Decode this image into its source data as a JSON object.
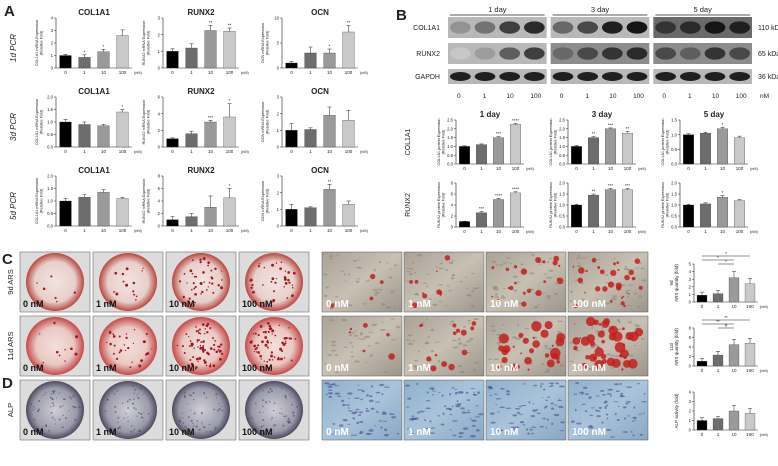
{
  "panels": {
    "A": "A",
    "B": "B",
    "C": "C",
    "D": "D"
  },
  "conc_ticks": [
    "0",
    "1",
    "10",
    "100"
  ],
  "unit_nm": "(nM)",
  "pcr_rows": [
    {
      "label": "1d PCR",
      "charts": [
        {
          "title": "COL1A1",
          "ylabel": "COL1A1 mRNA Expression (Relative Fold)",
          "ylim": [
            0,
            4
          ],
          "yticks": [
            "0",
            "1",
            "2",
            "3",
            "4"
          ],
          "values": [
            1.0,
            0.85,
            1.3,
            2.6
          ],
          "errors": [
            0.1,
            0.2,
            0.2,
            0.45
          ],
          "sig": [
            "",
            "*",
            "*",
            ""
          ]
        },
        {
          "title": "RUNX2",
          "ylabel": "RUNX2 mRNA Expression (Relative Fold)",
          "ylim": [
            0,
            3
          ],
          "yticks": [
            "0",
            "1",
            "2",
            "3"
          ],
          "values": [
            1.0,
            1.2,
            2.25,
            2.2
          ],
          "errors": [
            0.15,
            0.25,
            0.3,
            0.2
          ],
          "sig": [
            "",
            "",
            "**",
            "**"
          ]
        },
        {
          "title": "OCN",
          "ylabel": "OCN mRNA Expression (Relative Fold)",
          "ylim": [
            0,
            10
          ],
          "yticks": [
            "0",
            "5",
            "10"
          ],
          "values": [
            1.0,
            3.0,
            3.0,
            7.2
          ],
          "errors": [
            0.3,
            1.2,
            0.8,
            1.3
          ],
          "sig": [
            "",
            "",
            "*",
            "**"
          ]
        }
      ]
    },
    {
      "label": "3d PCR",
      "charts": [
        {
          "title": "COL1A1",
          "ylabel": "COL1A1 mRNA Expression (Relative Fold)",
          "ylim": [
            0,
            2
          ],
          "yticks": [
            "0.0",
            "0.5",
            "1.0",
            "1.5",
            "2.0"
          ],
          "values": [
            1.0,
            0.9,
            0.85,
            1.4
          ],
          "errors": [
            0.1,
            0.1,
            0.05,
            0.1
          ],
          "sig": [
            "",
            "",
            "",
            "*"
          ]
        },
        {
          "title": "RUNX2",
          "ylabel": "RUNX2 mRNA Expression (Relative Fold)",
          "ylim": [
            0,
            6
          ],
          "yticks": [
            "0",
            "2",
            "4",
            "6"
          ],
          "values": [
            1.0,
            1.6,
            3.0,
            3.6
          ],
          "errors": [
            0.1,
            0.3,
            0.2,
            1.6
          ],
          "sig": [
            "",
            "",
            "***",
            "*"
          ]
        },
        {
          "title": "OCN",
          "ylabel": "OCN mRNA Expression (Relative Fold)",
          "ylim": [
            0,
            3
          ],
          "yticks": [
            "0",
            "1",
            "2",
            "3"
          ],
          "values": [
            1.0,
            1.05,
            1.9,
            1.6
          ],
          "errors": [
            0.4,
            0.1,
            0.5,
            0.6
          ],
          "sig": [
            "",
            "",
            "",
            ""
          ]
        }
      ]
    },
    {
      "label": "5d PCR",
      "charts": [
        {
          "title": "COL1A1",
          "ylabel": "COL1A1 mRNA Expression (Relative Fold)",
          "ylim": [
            0,
            2
          ],
          "yticks": [
            "0.0",
            "0.5",
            "1.0",
            "1.5",
            "2.0"
          ],
          "values": [
            1.0,
            1.15,
            1.35,
            1.1
          ],
          "errors": [
            0.1,
            0.1,
            0.1,
            0.05
          ],
          "sig": [
            "",
            "",
            "",
            ""
          ]
        },
        {
          "title": "RUNX2",
          "ylabel": "RUNX2 mRNA Expression (Relative Fold)",
          "ylim": [
            0,
            8
          ],
          "yticks": [
            "0",
            "2",
            "4",
            "6",
            "8"
          ],
          "values": [
            1.0,
            1.5,
            3.0,
            4.5
          ],
          "errors": [
            0.5,
            0.5,
            1.8,
            1.5
          ],
          "sig": [
            "",
            "",
            "",
            "*"
          ]
        },
        {
          "title": "OCN",
          "ylabel": "OCN mRNA Expression (Relative Fold)",
          "ylim": [
            0,
            3
          ],
          "yticks": [
            "0",
            "1",
            "2",
            "3"
          ],
          "values": [
            1.0,
            1.1,
            2.2,
            1.3
          ],
          "errors": [
            0.3,
            0.05,
            0.3,
            0.2
          ],
          "sig": [
            "",
            "",
            "**",
            ""
          ]
        }
      ]
    }
  ],
  "blot": {
    "days": [
      "1 day",
      "3 day",
      "5 day"
    ],
    "proteins": [
      "COL1A1",
      "RUNX2",
      "GAPDH"
    ],
    "kda": [
      "110 kDa",
      "65 kDa",
      "36 kDa"
    ],
    "conc": [
      "0",
      "1",
      "10",
      "100",
      "0",
      "1",
      "10",
      "100",
      "0",
      "1",
      "10",
      "100"
    ],
    "nm": "nM"
  },
  "protein_rows": [
    {
      "label": "COL1A1",
      "charts": [
        {
          "title": "1 day",
          "ylabel": "COL1A1 protein Expression (Relative Fold)",
          "ylim": [
            0,
            2.5
          ],
          "yticks": [
            "0.0",
            "0.5",
            "1.0",
            "1.5",
            "2.0",
            "2.5"
          ],
          "values": [
            1.0,
            1.1,
            1.5,
            2.25
          ],
          "errors": [
            0.03,
            0.04,
            0.05,
            0.05
          ],
          "sig": [
            "",
            "",
            "***",
            "****"
          ]
        },
        {
          "title": "3 day",
          "ylabel": "COL1A1 protein Expression (Relative Fold)",
          "ylim": [
            0,
            2.5
          ],
          "yticks": [
            "0.0",
            "0.5",
            "1.0",
            "1.5",
            "2.0",
            "2.5"
          ],
          "values": [
            1.0,
            1.5,
            2.0,
            1.75
          ],
          "errors": [
            0.05,
            0.05,
            0.05,
            0.1
          ],
          "sig": [
            "",
            "**",
            "***",
            "**"
          ]
        },
        {
          "title": "5 day",
          "ylabel": "COL1A1 protein Expression (Relative Fold)",
          "ylim": [
            0,
            1.5
          ],
          "yticks": [
            "0.0",
            "0.5",
            "1.0",
            "1.5"
          ],
          "values": [
            1.0,
            1.05,
            1.2,
            0.9
          ],
          "errors": [
            0.03,
            0.03,
            0.05,
            0.05
          ],
          "sig": [
            "",
            "",
            "*",
            ""
          ]
        }
      ]
    },
    {
      "label": "RUNX2",
      "charts": [
        {
          "title": "",
          "ylabel": "RUNX2 protein Expression (Relative Fold)",
          "ylim": [
            0,
            8
          ],
          "yticks": [
            "0",
            "2",
            "4",
            "6",
            "8"
          ],
          "values": [
            1.0,
            2.6,
            5.0,
            6.2
          ],
          "errors": [
            0.05,
            0.2,
            0.2,
            0.2
          ],
          "sig": [
            "",
            "***",
            "****",
            "****"
          ]
        },
        {
          "title": "",
          "ylabel": "RUNX2 protein Expression (Relative Fold)",
          "ylim": [
            0,
            2
          ],
          "yticks": [
            "0.0",
            "0.5",
            "1.0",
            "1.5",
            "2.0"
          ],
          "values": [
            1.0,
            1.45,
            1.7,
            1.7
          ],
          "errors": [
            0.03,
            0.05,
            0.05,
            0.05
          ],
          "sig": [
            "",
            "**",
            "***",
            "***"
          ]
        },
        {
          "title": "",
          "ylabel": "RUNX2 protein Expression (Relative Fold)",
          "ylim": [
            0,
            2
          ],
          "yticks": [
            "0.0",
            "0.5",
            "1.0",
            "1.5",
            "2.0"
          ],
          "values": [
            1.0,
            1.05,
            1.35,
            1.2
          ],
          "errors": [
            0.03,
            0.05,
            0.08,
            0.05
          ],
          "sig": [
            "",
            "",
            "*",
            ""
          ]
        }
      ]
    }
  ],
  "image_rows": [
    {
      "label": "9d ARS",
      "labels": [
        "0 nM",
        "1 nM",
        "10 nM",
        "100 nM"
      ],
      "chart": {
        "title": "9d",
        "ylabel": "ARS quantity (fold)",
        "ylim": [
          0,
          5
        ],
        "yticks": [
          "0",
          "1",
          "2",
          "3",
          "4",
          "5"
        ],
        "values": [
          0.9,
          1.1,
          3.2,
          2.4
        ],
        "errors": [
          0.4,
          0.4,
          0.8,
          0.7
        ],
        "sig_lines": [
          "*",
          "*",
          "*"
        ]
      }
    },
    {
      "label": "11d ARS",
      "labels": [
        "0 nM",
        "1 nM",
        "10 nM",
        "100 nM"
      ],
      "chart": {
        "title": "11d",
        "ylabel": "ARS quantity (fold)",
        "ylim": [
          0,
          8
        ],
        "yticks": [
          "0",
          "2",
          "4",
          "6",
          "8"
        ],
        "values": [
          1.0,
          2.3,
          4.5,
          4.8
        ],
        "errors": [
          0.6,
          0.8,
          1.1,
          1.0
        ],
        "sig_lines": [
          "**",
          "**",
          "#"
        ]
      }
    },
    {
      "label": "ALP",
      "labels": [
        "0 nM",
        "1 nM",
        "10 nM",
        "100 nM"
      ],
      "chart": {
        "title": "",
        "ylabel": "ALP activity (fold)",
        "ylim": [
          0,
          4
        ],
        "yticks": [
          "0",
          "1",
          "2",
          "3",
          "4"
        ],
        "values": [
          1.0,
          1.2,
          2.0,
          1.75
        ],
        "errors": [
          0.3,
          0.2,
          0.6,
          0.5
        ],
        "sig_lines": []
      }
    }
  ],
  "colors": {
    "c0": "#000000",
    "c1": "#6d6d6d",
    "c2": "#9a9a9a",
    "c3": "#c9c9c9",
    "ars": "#c8283a",
    "alp": "#4a3f8f"
  }
}
